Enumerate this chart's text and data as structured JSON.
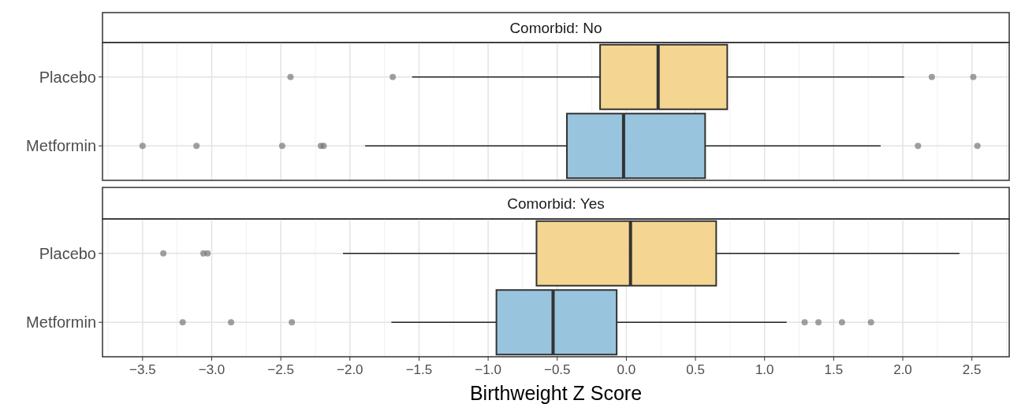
{
  "chart_data": [
    {
      "type": "box",
      "title": "Comorbid: No",
      "orientation": "horizontal",
      "categories": [
        "Placebo",
        "Metformin"
      ],
      "colors": [
        "#f3d38b",
        "#94c1dc"
      ],
      "boxes": [
        {
          "low": -1.55,
          "q1": -0.19,
          "median": 0.23,
          "q3": 0.73,
          "high": 2.01,
          "outliers": [
            -2.43,
            -1.69,
            2.21,
            2.51
          ]
        },
        {
          "low": -1.89,
          "q1": -0.43,
          "median": -0.02,
          "q3": 0.57,
          "high": 1.84,
          "outliers": [
            -3.5,
            -3.11,
            -2.49,
            -2.21,
            -2.19,
            2.11,
            2.54
          ]
        }
      ],
      "xlim": [
        -3.79,
        2.77
      ],
      "xticks": [
        -3.5,
        -3.0,
        -2.5,
        -2.0,
        -1.5,
        -1.0,
        -0.5,
        0.0,
        0.5,
        1.0,
        1.5,
        2.0,
        2.5
      ],
      "tick_labels": "y",
      "grid": true
    },
    {
      "type": "box",
      "title": "Comorbid: Yes",
      "orientation": "horizontal",
      "categories": [
        "Placebo",
        "Metformin"
      ],
      "colors": [
        "#f3d38b",
        "#94c1dc"
      ],
      "xlabel": "Birthweight Z Score",
      "boxes": [
        {
          "low": -2.05,
          "q1": -0.65,
          "median": 0.03,
          "q3": 0.65,
          "high": 2.41,
          "outliers": [
            -3.35,
            -3.06,
            -3.03
          ]
        },
        {
          "low": -1.7,
          "q1": -0.94,
          "median": -0.53,
          "q3": -0.07,
          "high": 1.16,
          "outliers": [
            -3.21,
            -2.86,
            -2.42,
            1.29,
            1.39,
            1.56,
            1.77
          ]
        }
      ],
      "xlim": [
        -3.79,
        2.77
      ],
      "xticks": [
        {
          "value": -3.5,
          "label": "−3.5"
        },
        {
          "value": -3.0,
          "label": "−3.0"
        },
        {
          "value": -2.5,
          "label": "−2.5"
        },
        {
          "value": -2.0,
          "label": "−2.0"
        },
        {
          "value": -1.5,
          "label": "−1.5"
        },
        {
          "value": -1.0,
          "label": "−1.0"
        },
        {
          "value": -0.5,
          "label": "−0.5"
        },
        {
          "value": 0.0,
          "label": "0.0"
        },
        {
          "value": 0.5,
          "label": "0.5"
        },
        {
          "value": 1.0,
          "label": "1.0"
        },
        {
          "value": 1.5,
          "label": "1.5"
        },
        {
          "value": 2.0,
          "label": "2.0"
        },
        {
          "value": 2.5,
          "label": "2.5"
        }
      ],
      "grid": true
    }
  ]
}
